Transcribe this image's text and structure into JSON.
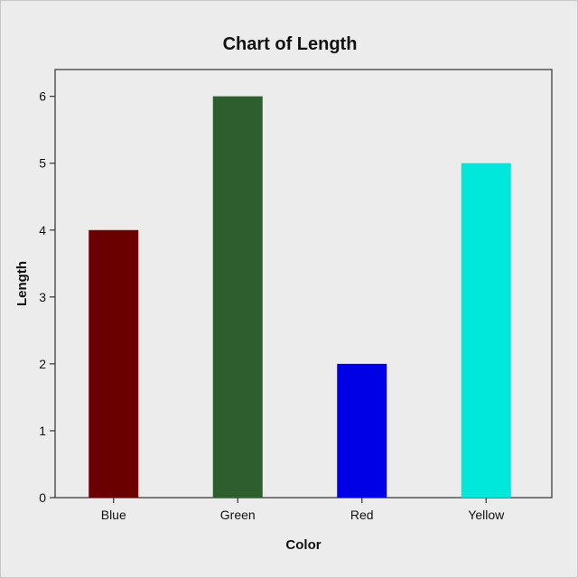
{
  "chart_data": {
    "type": "bar",
    "title": "Chart of Length",
    "xlabel": "Color",
    "ylabel": "Length",
    "categories": [
      "Blue",
      "Green",
      "Red",
      "Yellow"
    ],
    "values": [
      4,
      6,
      2,
      5
    ],
    "colors": [
      "#6b0000",
      "#2e5e2e",
      "#0000e6",
      "#00e8dc"
    ],
    "ylim": [
      0,
      6.4
    ],
    "yticks": [
      "0",
      "1",
      "2",
      "3",
      "4",
      "5",
      "6"
    ],
    "grid": false
  }
}
